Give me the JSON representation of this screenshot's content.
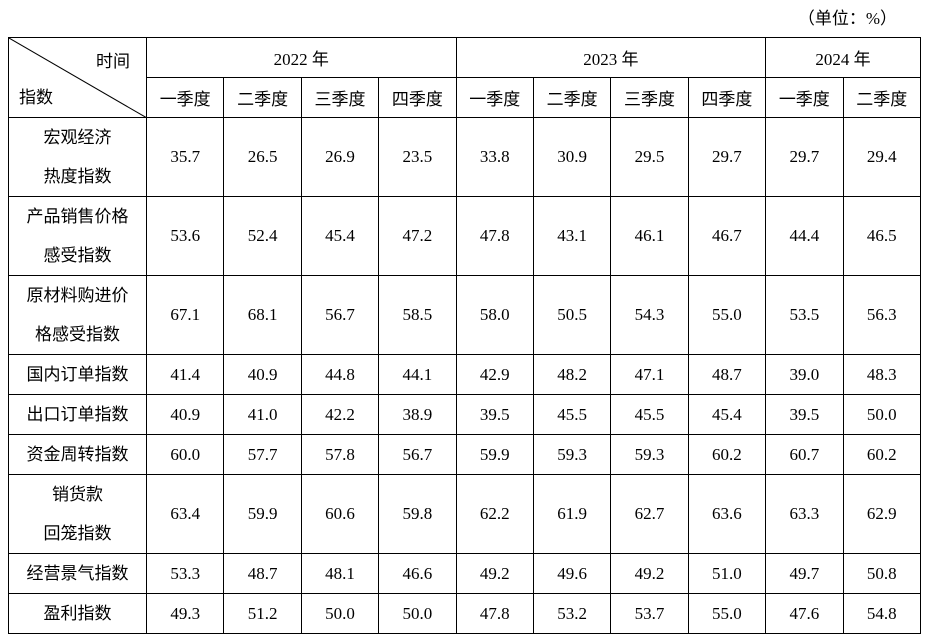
{
  "unit": "（单位：%）",
  "header": {
    "corner_top": "时间",
    "corner_bottom": "指数",
    "years": [
      {
        "label": "2022 年",
        "quarters": [
          "一季度",
          "二季度",
          "三季度",
          "四季度"
        ]
      },
      {
        "label": "2023 年",
        "quarters": [
          "一季度",
          "二季度",
          "三季度",
          "四季度"
        ]
      },
      {
        "label": "2024 年",
        "quarters": [
          "一季度",
          "二季度"
        ]
      }
    ]
  },
  "table": {
    "rows": [
      {
        "label": [
          "宏观经济",
          "热度指数"
        ],
        "values": [
          "35.7",
          "26.5",
          "26.9",
          "23.5",
          "33.8",
          "30.9",
          "29.5",
          "29.7",
          "29.7",
          "29.4"
        ]
      },
      {
        "label": [
          "产品销售价格",
          "感受指数"
        ],
        "values": [
          "53.6",
          "52.4",
          "45.4",
          "47.2",
          "47.8",
          "43.1",
          "46.1",
          "46.7",
          "44.4",
          "46.5"
        ]
      },
      {
        "label": [
          "原材料购进价",
          "格感受指数"
        ],
        "values": [
          "67.1",
          "68.1",
          "56.7",
          "58.5",
          "58.0",
          "50.5",
          "54.3",
          "55.0",
          "53.5",
          "56.3"
        ]
      },
      {
        "label": [
          "国内订单指数"
        ],
        "values": [
          "41.4",
          "40.9",
          "44.8",
          "44.1",
          "42.9",
          "48.2",
          "47.1",
          "48.7",
          "39.0",
          "48.3"
        ]
      },
      {
        "label": [
          "出口订单指数"
        ],
        "values": [
          "40.9",
          "41.0",
          "42.2",
          "38.9",
          "39.5",
          "45.5",
          "45.5",
          "45.4",
          "39.5",
          "50.0"
        ]
      },
      {
        "label": [
          "资金周转指数"
        ],
        "values": [
          "60.0",
          "57.7",
          "57.8",
          "56.7",
          "59.9",
          "59.3",
          "59.3",
          "60.2",
          "60.7",
          "60.2"
        ]
      },
      {
        "label": [
          "销货款",
          "回笼指数"
        ],
        "values": [
          "63.4",
          "59.9",
          "60.6",
          "59.8",
          "62.2",
          "61.9",
          "62.7",
          "63.6",
          "63.3",
          "62.9"
        ]
      },
      {
        "label": [
          "经营景气指数"
        ],
        "values": [
          "53.3",
          "48.7",
          "48.1",
          "46.6",
          "49.2",
          "49.6",
          "49.2",
          "51.0",
          "49.7",
          "50.8"
        ]
      },
      {
        "label": [
          "盈利指数"
        ],
        "values": [
          "49.3",
          "51.2",
          "50.0",
          "50.0",
          "47.8",
          "53.2",
          "53.7",
          "55.0",
          "47.6",
          "54.8"
        ]
      }
    ]
  }
}
